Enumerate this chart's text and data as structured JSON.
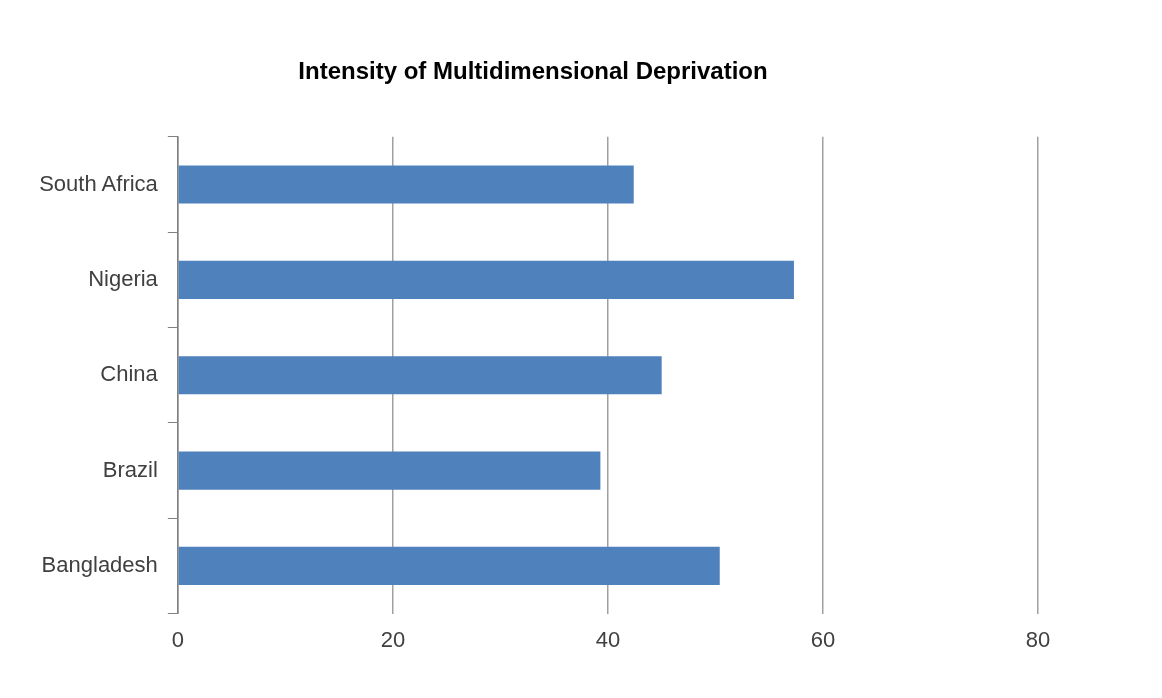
{
  "chart_data": {
    "type": "bar",
    "title": "Intensity of Multidimensional Deprivation",
    "orientation": "horizontal",
    "categories": [
      "South Africa",
      "Nigeria",
      "China",
      "Brazil",
      "Bangladesh"
    ],
    "values": [
      42.4,
      57.3,
      45.0,
      39.3,
      50.4
    ],
    "color": "#4f81bd",
    "xlim": [
      0,
      80
    ],
    "xticks": [
      0,
      20,
      40,
      60,
      80
    ],
    "grid": "x",
    "legend": false
  }
}
